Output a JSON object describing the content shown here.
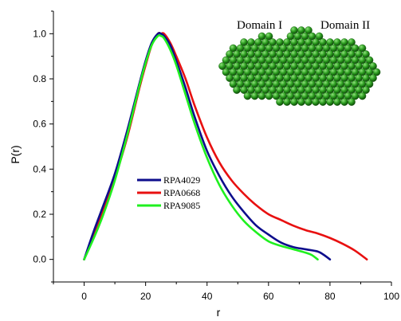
{
  "chart_data": {
    "type": "line",
    "xlabel": "r",
    "ylabel": "P(r)",
    "xlim": [
      -10,
      100
    ],
    "ylim": [
      -0.1,
      1.1
    ],
    "xticks": [
      0,
      20,
      40,
      60,
      80,
      100
    ],
    "yticks": [
      0.0,
      0.2,
      0.4,
      0.6,
      0.8,
      1.0
    ],
    "xtick_labels": [
      "0",
      "20",
      "40",
      "60",
      "80",
      "100"
    ],
    "ytick_labels": [
      "0.0",
      "0.2",
      "0.4",
      "0.6",
      "0.8",
      "1.0"
    ],
    "grid": false,
    "legend_position": "center-left",
    "series": [
      {
        "name": "RPA4029",
        "color": "#0d0d8c",
        "x": [
          0,
          3,
          6,
          10,
          14,
          18,
          20,
          22,
          24,
          25,
          26,
          28,
          30,
          33,
          36,
          40,
          44,
          48,
          52,
          56,
          60,
          64,
          68,
          72,
          76,
          78,
          80
        ],
        "y": [
          0.0,
          0.12,
          0.23,
          0.38,
          0.57,
          0.78,
          0.88,
          0.96,
          1.0,
          1.0,
          0.99,
          0.95,
          0.88,
          0.76,
          0.63,
          0.48,
          0.37,
          0.28,
          0.21,
          0.15,
          0.11,
          0.075,
          0.055,
          0.045,
          0.035,
          0.02,
          0.0
        ]
      },
      {
        "name": "RPA0668",
        "color": "#e81010",
        "x": [
          0,
          3,
          6,
          10,
          14,
          18,
          20,
          22,
          24,
          25,
          26,
          28,
          30,
          33,
          36,
          40,
          44,
          48,
          52,
          56,
          60,
          64,
          68,
          72,
          76,
          80,
          84,
          88,
          92
        ],
        "y": [
          0.0,
          0.1,
          0.21,
          0.36,
          0.54,
          0.76,
          0.86,
          0.95,
          1.0,
          1.0,
          1.0,
          0.96,
          0.9,
          0.8,
          0.68,
          0.54,
          0.43,
          0.35,
          0.29,
          0.24,
          0.2,
          0.175,
          0.15,
          0.13,
          0.115,
          0.095,
          0.07,
          0.04,
          0.0
        ]
      },
      {
        "name": "RPA9085",
        "color": "#1ff01f",
        "x": [
          0,
          3,
          6,
          10,
          14,
          18,
          20,
          22,
          24,
          25,
          26,
          28,
          30,
          33,
          36,
          40,
          44,
          48,
          52,
          56,
          60,
          64,
          68,
          72,
          74,
          76
        ],
        "y": [
          0.0,
          0.09,
          0.19,
          0.35,
          0.55,
          0.77,
          0.87,
          0.95,
          0.99,
          0.99,
          0.98,
          0.93,
          0.86,
          0.73,
          0.6,
          0.45,
          0.33,
          0.24,
          0.17,
          0.12,
          0.08,
          0.06,
          0.045,
          0.03,
          0.02,
          0.0
        ]
      }
    ]
  },
  "inset": {
    "label_left": "Domain I",
    "label_right": "Domain II",
    "bead_color": "#2a9a1e",
    "bead_highlight": "#8ee27a"
  }
}
